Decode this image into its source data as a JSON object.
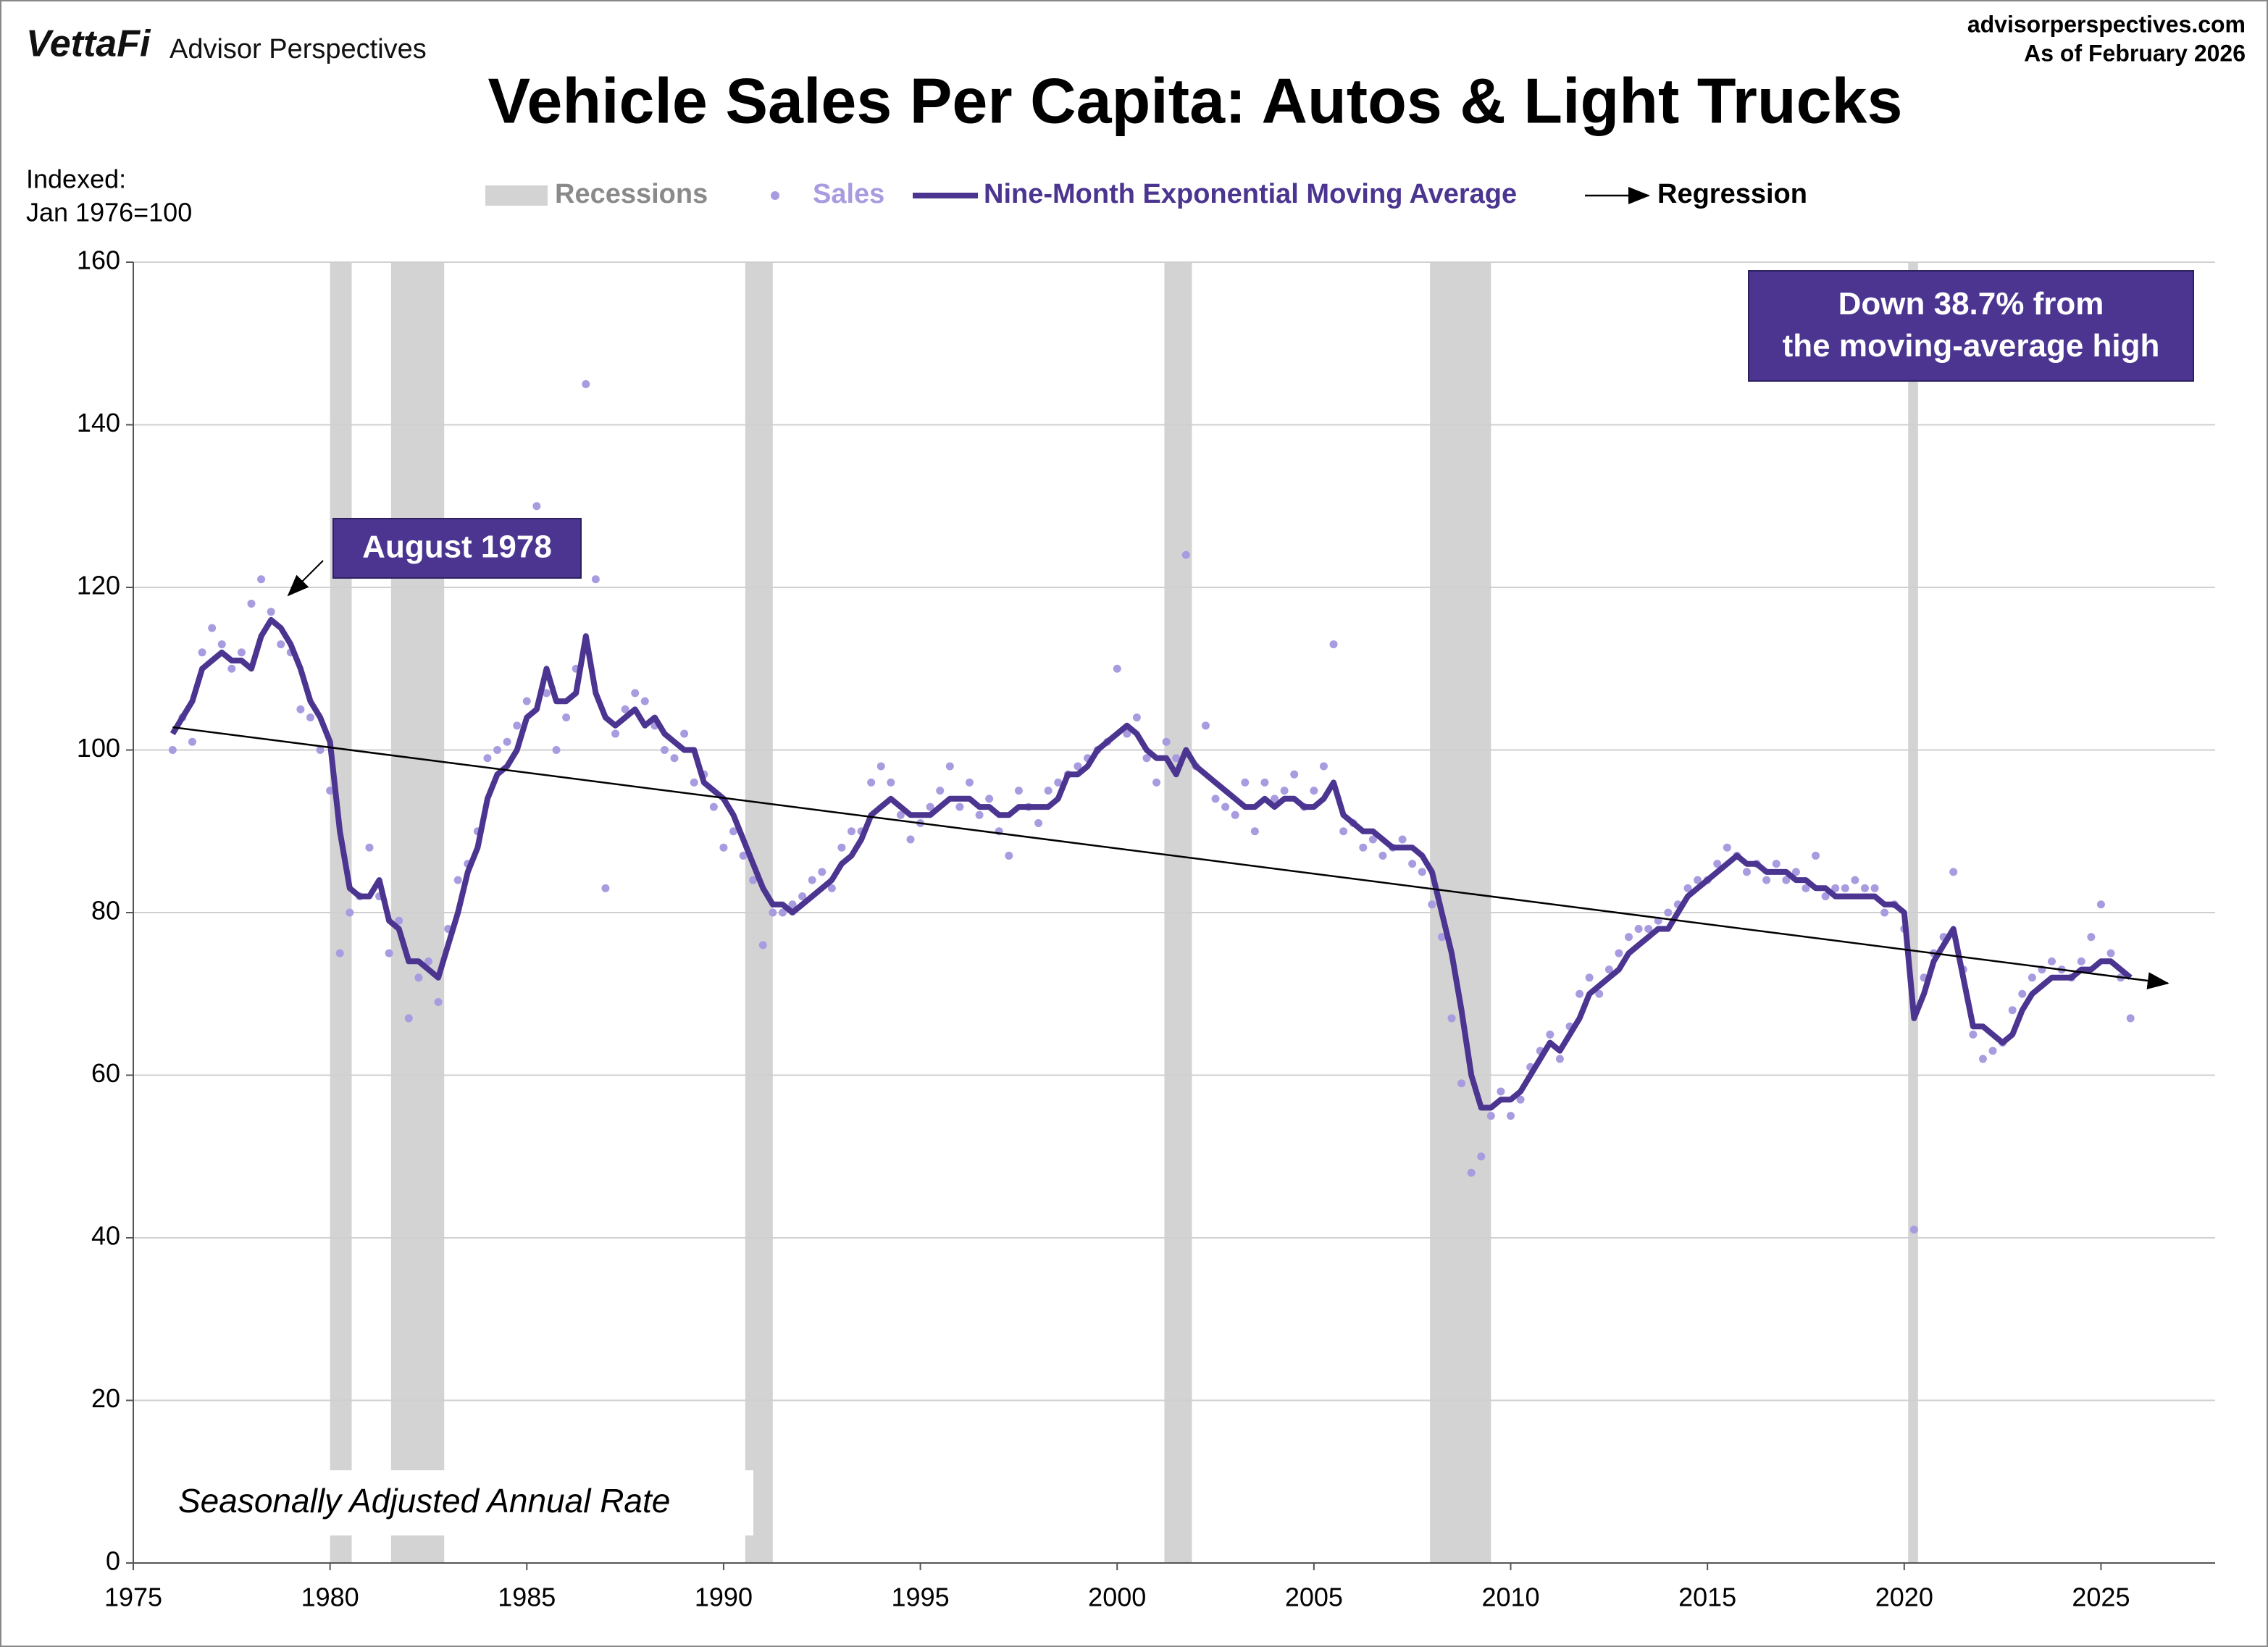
{
  "header": {
    "brand": "VettaFi",
    "publisher": "Advisor Perspectives",
    "site": "advisorperspectives.com",
    "as_of": "As of February 2026"
  },
  "chart_data": {
    "type": "line",
    "title": "Vehicle Sales Per Capita: Autos & Light Trucks",
    "y_label": [
      "Indexed:",
      "Jan 1976=100"
    ],
    "xlim": [
      1975,
      2027.9
    ],
    "ylim": [
      0,
      160
    ],
    "xticks": [
      1975,
      1980,
      1985,
      1990,
      1995,
      2000,
      2005,
      2010,
      2015,
      2020,
      2025
    ],
    "yticks": [
      0,
      20,
      40,
      60,
      80,
      100,
      120,
      140,
      160
    ],
    "grid": true,
    "recessions": {
      "name": "Recessions",
      "color": "#d3d3d3",
      "ranges": [
        [
          1980.0,
          1980.55
        ],
        [
          1981.55,
          1982.9
        ],
        [
          1990.55,
          1991.25
        ],
        [
          2001.2,
          2001.9
        ],
        [
          2007.95,
          2009.5
        ],
        [
          2020.1,
          2020.35
        ]
      ]
    },
    "x": [
      1976,
      1976.25,
      1976.5,
      1976.75,
      1977,
      1977.25,
      1977.5,
      1977.75,
      1978,
      1978.25,
      1978.5,
      1978.75,
      1979,
      1979.25,
      1979.5,
      1979.75,
      1980,
      1980.25,
      1980.5,
      1980.75,
      1981,
      1981.25,
      1981.5,
      1981.75,
      1982,
      1982.25,
      1982.5,
      1982.75,
      1983,
      1983.25,
      1983.5,
      1983.75,
      1984,
      1984.25,
      1984.5,
      1984.75,
      1985,
      1985.25,
      1985.5,
      1985.75,
      1986,
      1986.25,
      1986.5,
      1986.75,
      1987,
      1987.25,
      1987.5,
      1987.75,
      1988,
      1988.25,
      1988.5,
      1988.75,
      1989,
      1989.25,
      1989.5,
      1989.75,
      1990,
      1990.25,
      1990.5,
      1990.75,
      1991,
      1991.25,
      1991.5,
      1991.75,
      1992,
      1992.25,
      1992.5,
      1992.75,
      1993,
      1993.25,
      1993.5,
      1993.75,
      1994,
      1994.25,
      1994.5,
      1994.75,
      1995,
      1995.25,
      1995.5,
      1995.75,
      1996,
      1996.25,
      1996.5,
      1996.75,
      1997,
      1997.25,
      1997.5,
      1997.75,
      1998,
      1998.25,
      1998.5,
      1998.75,
      1999,
      1999.25,
      1999.5,
      1999.75,
      2000,
      2000.25,
      2000.5,
      2000.75,
      2001,
      2001.25,
      2001.5,
      2001.75,
      2002,
      2002.25,
      2002.5,
      2002.75,
      2003,
      2003.25,
      2003.5,
      2003.75,
      2004,
      2004.25,
      2004.5,
      2004.75,
      2005,
      2005.25,
      2005.5,
      2005.75,
      2006,
      2006.25,
      2006.5,
      2006.75,
      2007,
      2007.25,
      2007.5,
      2007.75,
      2008,
      2008.25,
      2008.5,
      2008.75,
      2009,
      2009.25,
      2009.5,
      2009.75,
      2010,
      2010.25,
      2010.5,
      2010.75,
      2011,
      2011.25,
      2011.5,
      2011.75,
      2012,
      2012.25,
      2012.5,
      2012.75,
      2013,
      2013.25,
      2013.5,
      2013.75,
      2014,
      2014.25,
      2014.5,
      2014.75,
      2015,
      2015.25,
      2015.5,
      2015.75,
      2016,
      2016.25,
      2016.5,
      2016.75,
      2017,
      2017.25,
      2017.5,
      2017.75,
      2018,
      2018.25,
      2018.5,
      2018.75,
      2019,
      2019.25,
      2019.5,
      2019.75,
      2020,
      2020.25,
      2020.5,
      2020.75,
      2021,
      2021.25,
      2021.5,
      2021.75,
      2022,
      2022.25,
      2022.5,
      2022.75,
      2023,
      2023.25,
      2023.5,
      2023.75,
      2024,
      2024.25,
      2024.5,
      2024.75,
      2025,
      2025.25,
      2025.5,
      2025.75
    ],
    "series": [
      {
        "name": "Sales",
        "style": "scatter",
        "color": "#a99be0",
        "values": [
          100,
          104,
          101,
          112,
          115,
          113,
          110,
          112,
          118,
          121,
          117,
          113,
          112,
          105,
          104,
          100,
          95,
          75,
          80,
          82,
          88,
          82,
          75,
          79,
          67,
          72,
          74,
          69,
          78,
          84,
          86,
          90,
          99,
          100,
          101,
          103,
          106,
          130,
          107,
          100,
          104,
          110,
          145,
          121,
          83,
          102,
          105,
          107,
          106,
          103,
          100,
          99,
          102,
          96,
          97,
          93,
          88,
          90,
          87,
          84,
          76,
          80,
          80,
          81,
          82,
          84,
          85,
          83,
          88,
          90,
          90,
          96,
          98,
          96,
          92,
          89,
          91,
          93,
          95,
          98,
          93,
          96,
          92,
          94,
          90,
          87,
          95,
          93,
          91,
          95,
          96,
          97,
          98,
          99,
          100,
          101,
          110,
          102,
          104,
          99,
          96,
          101,
          99,
          124,
          98,
          103,
          94,
          93,
          92,
          96,
          90,
          96,
          94,
          95,
          97,
          93,
          95,
          98,
          113,
          90,
          91,
          88,
          89,
          87,
          88,
          89,
          86,
          85,
          81,
          77,
          67,
          59,
          48,
          50,
          55,
          58,
          55,
          57,
          61,
          63,
          65,
          62,
          66,
          70,
          72,
          70,
          73,
          75,
          77,
          78,
          78,
          79,
          80,
          81,
          83,
          84,
          84,
          86,
          88,
          87,
          85,
          86,
          84,
          86,
          84,
          85,
          83,
          87,
          82,
          83,
          83,
          84,
          83,
          83,
          80,
          81,
          78,
          41,
          72,
          75,
          77,
          85,
          73,
          65,
          62,
          63,
          64,
          68,
          70,
          72,
          73,
          74,
          73,
          72,
          74,
          77,
          81,
          75,
          72,
          67
        ]
      },
      {
        "name": "Nine-Month Exponential Moving Average",
        "style": "line",
        "color": "#4b3590",
        "values": [
          102,
          104,
          106,
          110,
          111,
          112,
          111,
          111,
          110,
          114,
          116,
          115,
          113,
          110,
          106,
          104,
          101,
          90,
          83,
          82,
          82,
          84,
          79,
          78,
          74,
          74,
          73,
          72,
          76,
          80,
          85,
          88,
          94,
          97,
          98,
          100,
          104,
          105,
          110,
          106,
          106,
          107,
          114,
          107,
          104,
          103,
          104,
          105,
          103,
          104,
          102,
          101,
          100,
          100,
          96,
          95,
          94,
          92,
          89,
          86,
          83,
          81,
          81,
          80,
          81,
          82,
          83,
          84,
          86,
          87,
          89,
          92,
          93,
          94,
          93,
          92,
          92,
          92,
          93,
          94,
          94,
          94,
          93,
          93,
          92,
          92,
          93,
          93,
          93,
          93,
          94,
          97,
          97,
          98,
          100,
          101,
          102,
          103,
          102,
          100,
          99,
          99,
          97,
          100,
          98,
          97,
          96,
          95,
          94,
          93,
          93,
          94,
          93,
          94,
          94,
          93,
          93,
          94,
          96,
          92,
          91,
          90,
          90,
          89,
          88,
          88,
          88,
          87,
          85,
          80,
          75,
          68,
          60,
          56,
          56,
          57,
          57,
          58,
          60,
          62,
          64,
          63,
          65,
          67,
          70,
          71,
          72,
          73,
          75,
          76,
          77,
          78,
          78,
          80,
          82,
          83,
          84,
          85,
          86,
          87,
          86,
          86,
          85,
          85,
          85,
          84,
          84,
          83,
          83,
          82,
          82,
          82,
          82,
          82,
          81,
          81,
          80,
          67,
          70,
          74,
          76,
          78,
          72,
          66,
          66,
          65,
          64,
          65,
          68,
          70,
          71,
          72,
          72,
          72,
          73,
          73,
          74,
          74,
          73,
          72
        ]
      },
      {
        "name": "Regression",
        "style": "arrow",
        "color": "#000000",
        "x": [
          1976,
          2026.7
        ],
        "values": [
          102.8,
          71.3
        ]
      }
    ],
    "annotations": [
      {
        "text": "August 1978"
      },
      {
        "text": "Down 38.7% from the moving-average high"
      },
      {
        "text": "Seasonally Adjusted Annual Rate"
      }
    ]
  }
}
